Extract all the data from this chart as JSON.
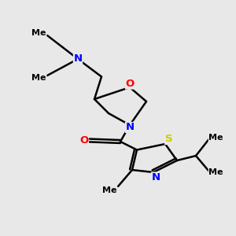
{
  "background_color": "#e8e8e8",
  "bond_color": "#000000",
  "N_color": "#0000ff",
  "O_color": "#ff0000",
  "S_color": "#cccc00",
  "line_width": 1.8,
  "font_size": 9.5,
  "figsize": [
    3.0,
    3.0
  ],
  "dpi": 100,
  "xlim": [
    0,
    10
  ],
  "ylim": [
    0,
    10
  ]
}
